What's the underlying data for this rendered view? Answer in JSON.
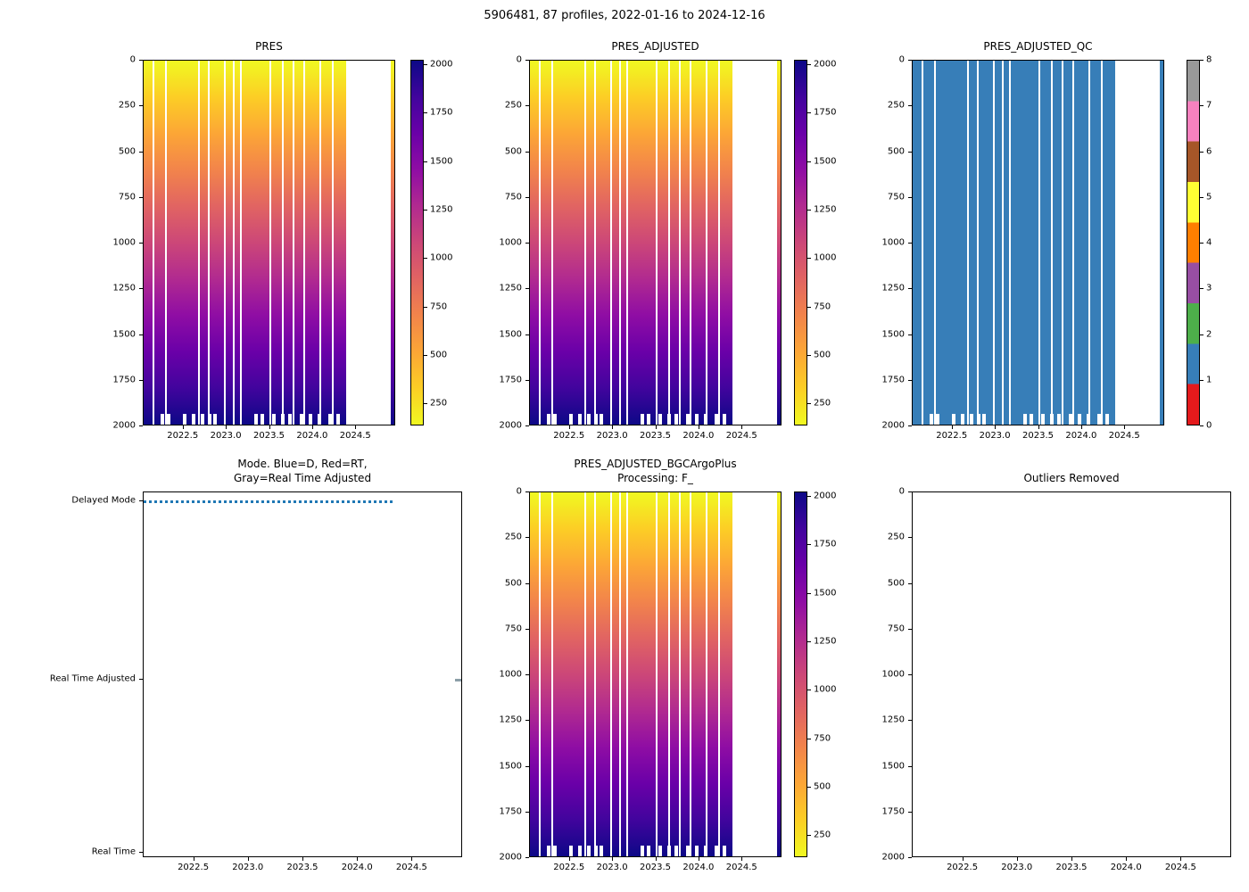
{
  "figure": {
    "title": "5906481, 87 profiles, 2022-01-16 to 2024-12-16",
    "background": "#ffffff"
  },
  "colors": {
    "axes_border": "#000000",
    "plasma_stops_dark_to_yellow": [
      "#0d0887",
      "#41049d",
      "#6a00a8",
      "#8f0da4",
      "#b12a90",
      "#cc4778",
      "#e16462",
      "#f2844b",
      "#fca636",
      "#fcce25",
      "#f0f921"
    ],
    "qc_palette_0_to_8": [
      "#e41a1c",
      "#377eb8",
      "#4daf4a",
      "#984ea3",
      "#ff7f00",
      "#ffff33",
      "#a65628",
      "#f781bf",
      "#999999"
    ],
    "qc_fill_blue": "#377eb8",
    "delayed_mode_blue": "#1f77b4",
    "real_time_adjusted_gray": "#8c9fa8"
  },
  "chart_data": [
    {
      "id": "pres",
      "type": "heatmap",
      "title": "PRES",
      "colormap": "plasma reversed (yellow at surface, dark navy at depth)",
      "xlim": [
        2022.04,
        2024.96
      ],
      "depth_range": [
        0,
        2000
      ],
      "value_range": [
        0,
        2000
      ],
      "x_tick_labels": [
        "2022.5",
        "2023.0",
        "2023.5",
        "2024.0",
        "2024.5"
      ],
      "y_tick_labels": [
        "0",
        "250",
        "500",
        "750",
        "1000",
        "1250",
        "1500",
        "1750",
        "2000"
      ],
      "colorbar_tick_labels": [
        "2000",
        "1750",
        "1500",
        "1250",
        "1000",
        "750",
        "500",
        "250"
      ],
      "data_blocks": [
        {
          "x0": 0.0,
          "x1": 0.809
        },
        {
          "x0": 0.986,
          "x1": 1.0
        }
      ],
      "missing_profile_fractions": [
        0.04,
        0.088,
        0.219,
        0.261,
        0.325,
        0.36,
        0.389,
        0.505,
        0.555,
        0.597,
        0.64,
        0.703,
        0.756
      ],
      "shallow_profile_fractions": [
        0.075,
        0.1,
        0.165,
        0.2,
        0.235,
        0.265,
        0.285,
        0.45,
        0.475,
        0.52,
        0.555,
        0.585,
        0.63,
        0.665,
        0.7,
        0.745,
        0.775
      ]
    },
    {
      "id": "pres_adjusted",
      "type": "heatmap",
      "title": "PRES_ADJUSTED",
      "colormap": "plasma reversed (yellow at surface, dark navy at depth)",
      "xlim": [
        2022.04,
        2024.96
      ],
      "depth_range": [
        0,
        2000
      ],
      "value_range": [
        0,
        2000
      ],
      "x_tick_labels": [
        "2022.5",
        "2023.0",
        "2023.5",
        "2024.0",
        "2024.5"
      ],
      "y_tick_labels": [
        "0",
        "250",
        "500",
        "750",
        "1000",
        "1250",
        "1500",
        "1750",
        "2000"
      ],
      "colorbar_tick_labels": [
        "2000",
        "1750",
        "1500",
        "1250",
        "1000",
        "750",
        "500",
        "250"
      ],
      "data_blocks": [
        {
          "x0": 0.0,
          "x1": 0.809
        },
        {
          "x0": 0.986,
          "x1": 1.0
        }
      ],
      "missing_profile_fractions": [
        0.04,
        0.088,
        0.219,
        0.261,
        0.325,
        0.36,
        0.389,
        0.505,
        0.555,
        0.597,
        0.64,
        0.703,
        0.756
      ],
      "shallow_profile_fractions": [
        0.075,
        0.1,
        0.165,
        0.2,
        0.235,
        0.265,
        0.285,
        0.45,
        0.475,
        0.52,
        0.555,
        0.585,
        0.63,
        0.665,
        0.7,
        0.745,
        0.775
      ]
    },
    {
      "id": "pres_adjusted_qc",
      "type": "heatmap_categorical",
      "title": "PRES_ADJUSTED_QC",
      "dominant_qc_value": 1,
      "xlim": [
        2022.04,
        2024.96
      ],
      "depth_range": [
        0,
        2000
      ],
      "x_tick_labels": [
        "2022.5",
        "2023.0",
        "2023.5",
        "2024.0",
        "2024.5"
      ],
      "y_tick_labels": [
        "0",
        "250",
        "500",
        "750",
        "1000",
        "1250",
        "1500",
        "1750",
        "2000"
      ],
      "colorbar_tick_labels": [
        "8",
        "7",
        "6",
        "5",
        "4",
        "3",
        "2",
        "1",
        "0"
      ],
      "data_blocks": [
        {
          "x0": 0.0,
          "x1": 0.809
        },
        {
          "x0": 0.986,
          "x1": 1.0
        }
      ],
      "missing_profile_fractions": [
        0.04,
        0.088,
        0.219,
        0.261,
        0.325,
        0.36,
        0.389,
        0.505,
        0.555,
        0.597,
        0.64,
        0.703,
        0.756
      ],
      "shallow_profile_fractions": [
        0.075,
        0.1,
        0.165,
        0.2,
        0.235,
        0.265,
        0.285,
        0.45,
        0.475,
        0.52,
        0.555,
        0.585,
        0.63,
        0.665,
        0.7,
        0.745,
        0.775
      ]
    },
    {
      "id": "mode",
      "type": "scatter_categorical",
      "title": "Mode. Blue=D, Red=RT,\nGray=Real Time Adjusted",
      "xlim": [
        2022.04,
        2024.96
      ],
      "x_tick_labels": [
        "2022.5",
        "2023.0",
        "2023.5",
        "2024.0",
        "2024.5"
      ],
      "y_category_labels": [
        "Delayed Mode",
        "Real Time Adjusted",
        "Real Time"
      ],
      "series": [
        {
          "name": "Delayed Mode",
          "marker": "blue dashed run of profile markers",
          "x_fraction_start": 0.0,
          "x_fraction_end": 0.79
        },
        {
          "name": "Real Time Adjusted",
          "marker": "single short mark",
          "x_fraction": 0.98
        }
      ]
    },
    {
      "id": "pres_adjusted_bgc",
      "type": "heatmap",
      "title": "PRES_ADJUSTED_BGCArgoPlus\nProcessing: F_",
      "colormap": "plasma reversed (yellow at surface, dark navy at depth)",
      "xlim": [
        2022.04,
        2024.96
      ],
      "depth_range": [
        0,
        2000
      ],
      "value_range": [
        0,
        2000
      ],
      "x_tick_labels": [
        "2022.5",
        "2023.0",
        "2023.5",
        "2024.0",
        "2024.5"
      ],
      "y_tick_labels": [
        "0",
        "250",
        "500",
        "750",
        "1000",
        "1250",
        "1500",
        "1750",
        "2000"
      ],
      "colorbar_tick_labels": [
        "2000",
        "1750",
        "1500",
        "1250",
        "1000",
        "750",
        "500",
        "250"
      ],
      "data_blocks": [
        {
          "x0": 0.0,
          "x1": 0.809
        },
        {
          "x0": 0.986,
          "x1": 1.0
        }
      ],
      "missing_profile_fractions": [
        0.04,
        0.088,
        0.219,
        0.261,
        0.325,
        0.36,
        0.389,
        0.505,
        0.555,
        0.597,
        0.64,
        0.703,
        0.756
      ],
      "shallow_profile_fractions": [
        0.075,
        0.1,
        0.165,
        0.2,
        0.235,
        0.265,
        0.285,
        0.45,
        0.475,
        0.52,
        0.555,
        0.585,
        0.63,
        0.665,
        0.7,
        0.745,
        0.775
      ]
    },
    {
      "id": "outliers",
      "type": "empty",
      "title": "Outliers Removed",
      "xlim": [
        2022.04,
        2024.96
      ],
      "depth_range": [
        0,
        2000
      ],
      "x_tick_labels": [
        "2022.5",
        "2023.0",
        "2023.5",
        "2024.0",
        "2024.5"
      ],
      "y_tick_labels": [
        "0",
        "250",
        "500",
        "750",
        "1000",
        "1250",
        "1500",
        "1750",
        "2000"
      ]
    }
  ]
}
